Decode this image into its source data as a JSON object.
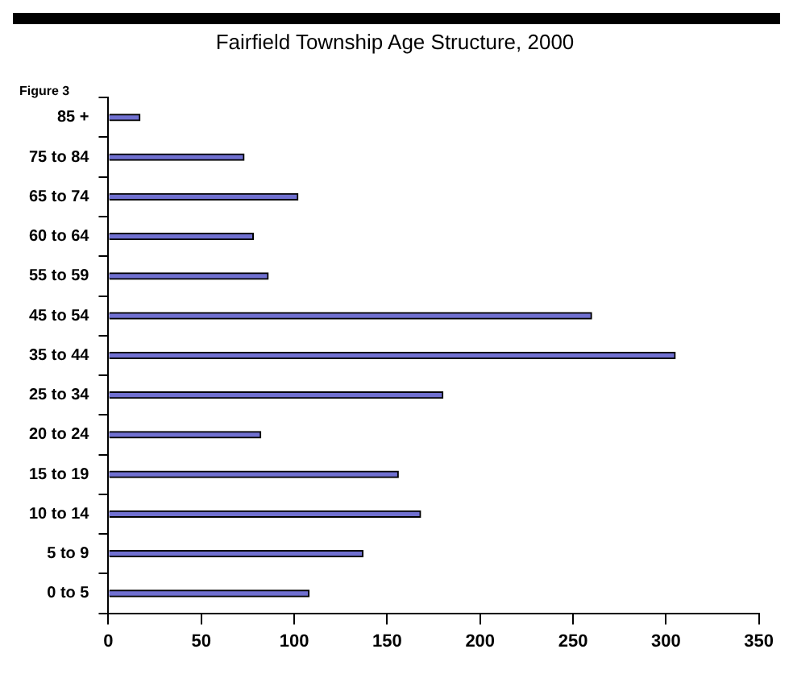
{
  "chart_data": {
    "type": "bar",
    "orientation": "horizontal",
    "title": "Fairfield Township Age Structure, 2000",
    "annotations": [
      "Figure 3"
    ],
    "categories": [
      "85 +",
      "75 to 84",
      "65 to 74",
      "60 to 64",
      "55 to 59",
      "45 to 54",
      "35 to 44",
      "25 to 34",
      "20 to 24",
      "15 to 19",
      "10 to 14",
      "5 to 9",
      "0 to 5"
    ],
    "values": [
      17,
      73,
      102,
      78,
      86,
      260,
      305,
      180,
      82,
      156,
      168,
      137,
      108
    ],
    "color": "#7070d0",
    "xlim": [
      0,
      350
    ],
    "xticks": [
      0,
      50,
      100,
      150,
      200,
      250,
      300,
      350
    ],
    "grid": false,
    "legend": false
  }
}
